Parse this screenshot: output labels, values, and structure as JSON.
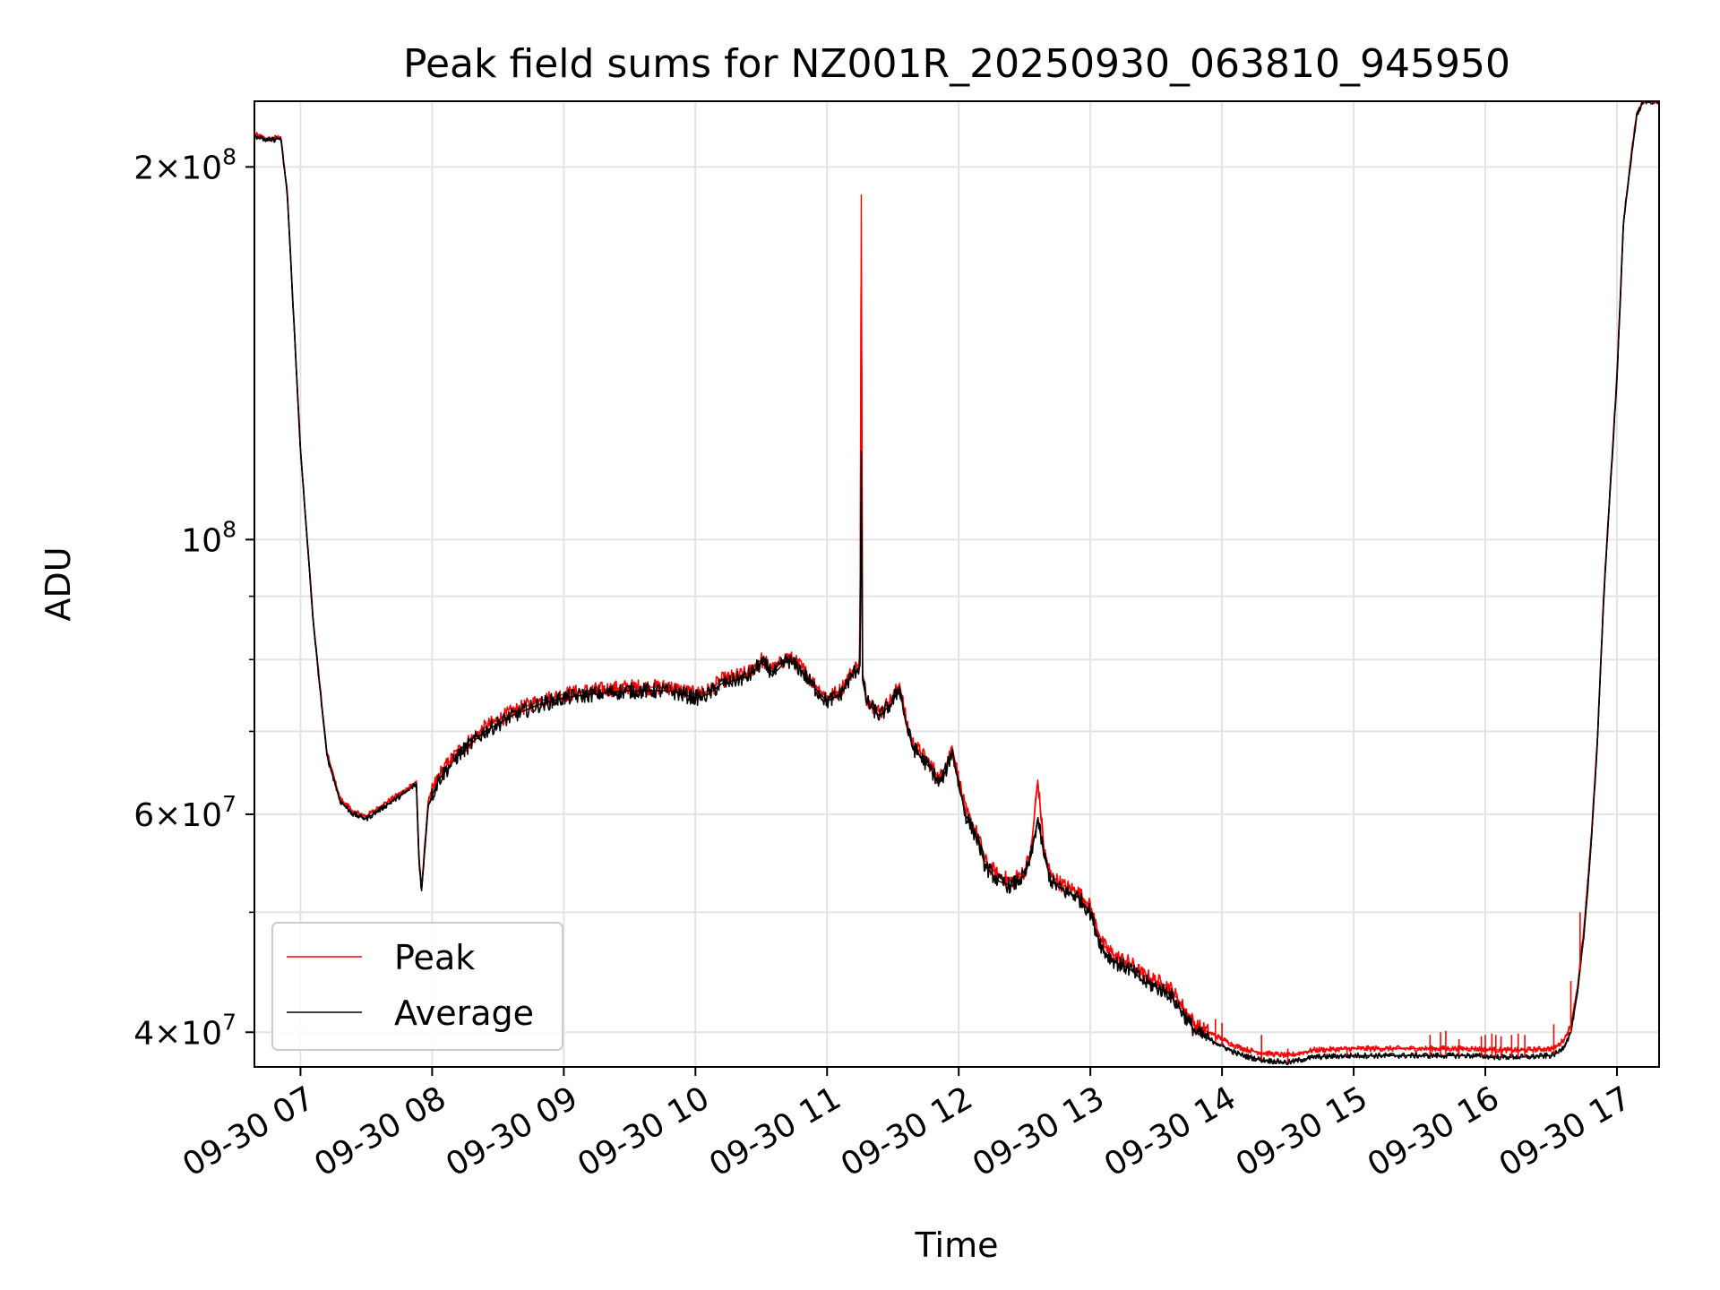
{
  "chart_data": {
    "type": "line",
    "title": "Peak field sums for NZ001R_20250930_063810_945950",
    "xlabel": "Time",
    "ylabel": "ADU",
    "yscale": "log",
    "xlim": [
      6.65,
      17.32
    ],
    "ylim": [
      37500000,
      226000000
    ],
    "grid": true,
    "legend_position": "lower-left",
    "x_ticks": [
      {
        "value": 7,
        "label": "09-30 07"
      },
      {
        "value": 8,
        "label": "09-30 08"
      },
      {
        "value": 9,
        "label": "09-30 09"
      },
      {
        "value": 10,
        "label": "09-30 10"
      },
      {
        "value": 11,
        "label": "09-30 11"
      },
      {
        "value": 12,
        "label": "09-30 12"
      },
      {
        "value": 13,
        "label": "09-30 13"
      },
      {
        "value": 14,
        "label": "09-30 14"
      },
      {
        "value": 15,
        "label": "09-30 15"
      },
      {
        "value": 16,
        "label": "09-30 16"
      },
      {
        "value": 17,
        "label": "09-30 17"
      }
    ],
    "y_ticks": [
      {
        "value": 40000000,
        "mantissa": "4",
        "times": "×",
        "base": "10",
        "exp": "7"
      },
      {
        "value": 60000000,
        "mantissa": "6",
        "times": "×",
        "base": "10",
        "exp": "7"
      },
      {
        "value": 100000000,
        "mantissa": "",
        "times": "",
        "base": "10",
        "exp": "8"
      },
      {
        "value": 200000000,
        "mantissa": "2",
        "times": "×",
        "base": "10",
        "exp": "8"
      }
    ],
    "y_minor_ticks": [
      50000000,
      70000000,
      80000000,
      90000000
    ],
    "series": [
      {
        "name": "Average",
        "color": "#000000",
        "x": [
          6.65,
          6.75,
          6.85,
          6.9,
          7.0,
          7.1,
          7.2,
          7.3,
          7.4,
          7.5,
          7.6,
          7.7,
          7.8,
          7.88,
          7.9,
          7.92,
          7.97,
          8.05,
          8.2,
          8.4,
          8.6,
          8.8,
          9.0,
          9.2,
          9.5,
          9.8,
          10.0,
          10.1,
          10.2,
          10.3,
          10.4,
          10.5,
          10.6,
          10.7,
          10.8,
          10.9,
          11.0,
          11.1,
          11.2,
          11.25,
          11.26,
          11.27,
          11.3,
          11.4,
          11.5,
          11.55,
          11.6,
          11.65,
          11.7,
          11.75,
          11.8,
          11.85,
          11.9,
          11.95,
          12.0,
          12.05,
          12.1,
          12.15,
          12.2,
          12.3,
          12.4,
          12.5,
          12.55,
          12.6,
          12.65,
          12.7,
          12.8,
          12.9,
          13.0,
          13.05,
          13.1,
          13.2,
          13.3,
          13.4,
          13.5,
          13.6,
          13.7,
          13.8,
          13.9,
          14.0,
          14.1,
          14.2,
          14.3,
          14.4,
          14.5,
          14.6,
          14.7,
          15.0,
          15.3,
          15.6,
          15.9,
          16.1,
          16.3,
          16.5,
          16.55,
          16.6,
          16.65,
          16.7,
          16.75,
          16.8,
          16.85,
          16.9,
          17.0,
          17.05,
          17.1,
          17.15,
          17.2,
          17.32
        ],
        "values": [
          212000000,
          210000000,
          211000000,
          190000000,
          118000000,
          85000000,
          67000000,
          61500000,
          60000000,
          59500000,
          60500000,
          61500000,
          62500000,
          63500000,
          55000000,
          52000000,
          61000000,
          64000000,
          67000000,
          70000000,
          72000000,
          73500000,
          74500000,
          75000000,
          75500000,
          75500000,
          74500000,
          75000000,
          76500000,
          77000000,
          77500000,
          79500000,
          78000000,
          80000000,
          78500000,
          76000000,
          74000000,
          75000000,
          78000000,
          79000000,
          118000000,
          77000000,
          74000000,
          72000000,
          74000000,
          76000000,
          71000000,
          68000000,
          67000000,
          66000000,
          65000000,
          63500000,
          65000000,
          67500000,
          63500000,
          60000000,
          58500000,
          57000000,
          54500000,
          53000000,
          52500000,
          53500000,
          55500000,
          59500000,
          55500000,
          53000000,
          52000000,
          51500000,
          50000000,
          48000000,
          46500000,
          45500000,
          45000000,
          44000000,
          43500000,
          43000000,
          41500000,
          40000000,
          39500000,
          39000000,
          38500000,
          38200000,
          38000000,
          37900000,
          37800000,
          38000000,
          38200000,
          38300000,
          38300000,
          38300000,
          38300000,
          38200000,
          38200000,
          38300000,
          38500000,
          39000000,
          40000000,
          43000000,
          48000000,
          56000000,
          68000000,
          90000000,
          135000000,
          180000000,
          200000000,
          220000000,
          226000000,
          226000000
        ]
      },
      {
        "name": "Peak",
        "color": "#ff0000",
        "x": [
          6.65,
          6.75,
          6.85,
          6.9,
          7.0,
          7.1,
          7.2,
          7.3,
          7.4,
          7.5,
          7.6,
          7.7,
          7.8,
          7.88,
          7.9,
          7.92,
          7.97,
          8.05,
          8.2,
          8.4,
          8.6,
          8.8,
          9.0,
          9.2,
          9.5,
          9.8,
          10.0,
          10.1,
          10.2,
          10.3,
          10.4,
          10.5,
          10.6,
          10.7,
          10.8,
          10.9,
          11.0,
          11.1,
          11.2,
          11.25,
          11.26,
          11.27,
          11.3,
          11.4,
          11.5,
          11.55,
          11.6,
          11.65,
          11.7,
          11.75,
          11.8,
          11.85,
          11.9,
          11.95,
          12.0,
          12.05,
          12.1,
          12.15,
          12.2,
          12.3,
          12.4,
          12.5,
          12.55,
          12.6,
          12.65,
          12.7,
          12.8,
          12.9,
          13.0,
          13.05,
          13.1,
          13.2,
          13.3,
          13.4,
          13.5,
          13.6,
          13.7,
          13.8,
          13.9,
          14.0,
          14.1,
          14.2,
          14.3,
          14.4,
          14.5,
          14.6,
          14.7,
          15.0,
          15.3,
          15.6,
          15.9,
          16.1,
          16.3,
          16.5,
          16.55,
          16.6,
          16.65,
          16.7,
          16.75,
          16.8,
          16.85,
          16.9,
          17.0,
          17.05,
          17.1,
          17.15,
          17.2,
          17.32
        ],
        "values": [
          212500000,
          210500000,
          211500000,
          190500000,
          118500000,
          85300000,
          67300000,
          61800000,
          60300000,
          59800000,
          60800000,
          61800000,
          62800000,
          63800000,
          55300000,
          52300000,
          61500000,
          64500000,
          67500000,
          70500000,
          72500000,
          74000000,
          75000000,
          75500000,
          76000000,
          76000000,
          75000000,
          75500000,
          77000000,
          77500000,
          78000000,
          80000000,
          78500000,
          80500000,
          79000000,
          76500000,
          74500000,
          75500000,
          78500000,
          79500000,
          190000000,
          77500000,
          74500000,
          72500000,
          74500000,
          76500000,
          71500000,
          68500000,
          67500000,
          66500000,
          65500000,
          64000000,
          65500000,
          68000000,
          64000000,
          60500000,
          59000000,
          57500000,
          55000000,
          53500000,
          53000000,
          54000000,
          56000000,
          64000000,
          56000000,
          53500000,
          52500000,
          52000000,
          50500000,
          48500000,
          47000000,
          46000000,
          45500000,
          44500000,
          44000000,
          43500000,
          42000000,
          40500000,
          40000000,
          39500000,
          39000000,
          38700000,
          38500000,
          38400000,
          38300000,
          38500000,
          38700000,
          38800000,
          38800000,
          38800000,
          38800000,
          38700000,
          38700000,
          38800000,
          39000000,
          39500000,
          40500000,
          43500000,
          48500000,
          56500000,
          68500000,
          90500000,
          136000000,
          181000000,
          201000000,
          221000000,
          226000000,
          226000000
        ]
      }
    ],
    "peak_spikes": [
      {
        "x": 7.83,
        "value": 63500000
      },
      {
        "x": 8.15,
        "value": 67000000
      },
      {
        "x": 9.25,
        "value": 76000000
      },
      {
        "x": 9.3,
        "value": 76200000
      },
      {
        "x": 9.45,
        "value": 76300000
      },
      {
        "x": 9.55,
        "value": 76500000
      },
      {
        "x": 9.8,
        "value": 76800000
      },
      {
        "x": 10.05,
        "value": 76200000
      },
      {
        "x": 10.25,
        "value": 78000000
      },
      {
        "x": 13.95,
        "value": 41000000
      },
      {
        "x": 14.0,
        "value": 40700000
      },
      {
        "x": 14.3,
        "value": 39800000
      },
      {
        "x": 14.5,
        "value": 38800000
      },
      {
        "x": 14.95,
        "value": 38800000
      },
      {
        "x": 15.58,
        "value": 39800000
      },
      {
        "x": 15.66,
        "value": 40000000
      },
      {
        "x": 15.7,
        "value": 40100000
      },
      {
        "x": 15.8,
        "value": 39500000
      },
      {
        "x": 15.97,
        "value": 39700000
      },
      {
        "x": 16.0,
        "value": 39800000
      },
      {
        "x": 16.05,
        "value": 39900000
      },
      {
        "x": 16.08,
        "value": 39800000
      },
      {
        "x": 16.12,
        "value": 39700000
      },
      {
        "x": 16.2,
        "value": 39800000
      },
      {
        "x": 16.25,
        "value": 39900000
      },
      {
        "x": 16.3,
        "value": 39800000
      },
      {
        "x": 16.52,
        "value": 40600000
      },
      {
        "x": 16.65,
        "value": 44000000
      },
      {
        "x": 16.72,
        "value": 50000000
      }
    ]
  }
}
